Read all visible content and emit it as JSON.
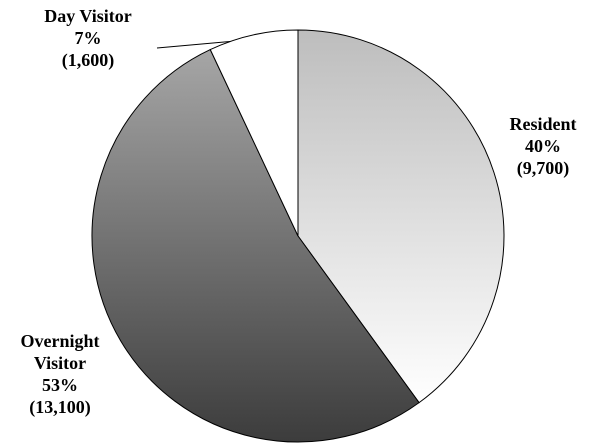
{
  "chart_data": {
    "type": "pie",
    "categories": [
      "Resident",
      "Overnight Visitor",
      "Day Visitor"
    ],
    "values": [
      40,
      53,
      7
    ],
    "value_labels": [
      "40%",
      "53%",
      "7%"
    ],
    "counts": [
      9700,
      13100,
      1600
    ],
    "count_labels": [
      "(9,700)",
      "(13,100)",
      "(1,600)"
    ],
    "gradients": [
      [
        "#bdbdbd",
        "#ffffff"
      ],
      [
        "#a6a6a6",
        "#3c3c3c"
      ],
      [
        "#ffffff",
        "#ffffff"
      ]
    ]
  }
}
